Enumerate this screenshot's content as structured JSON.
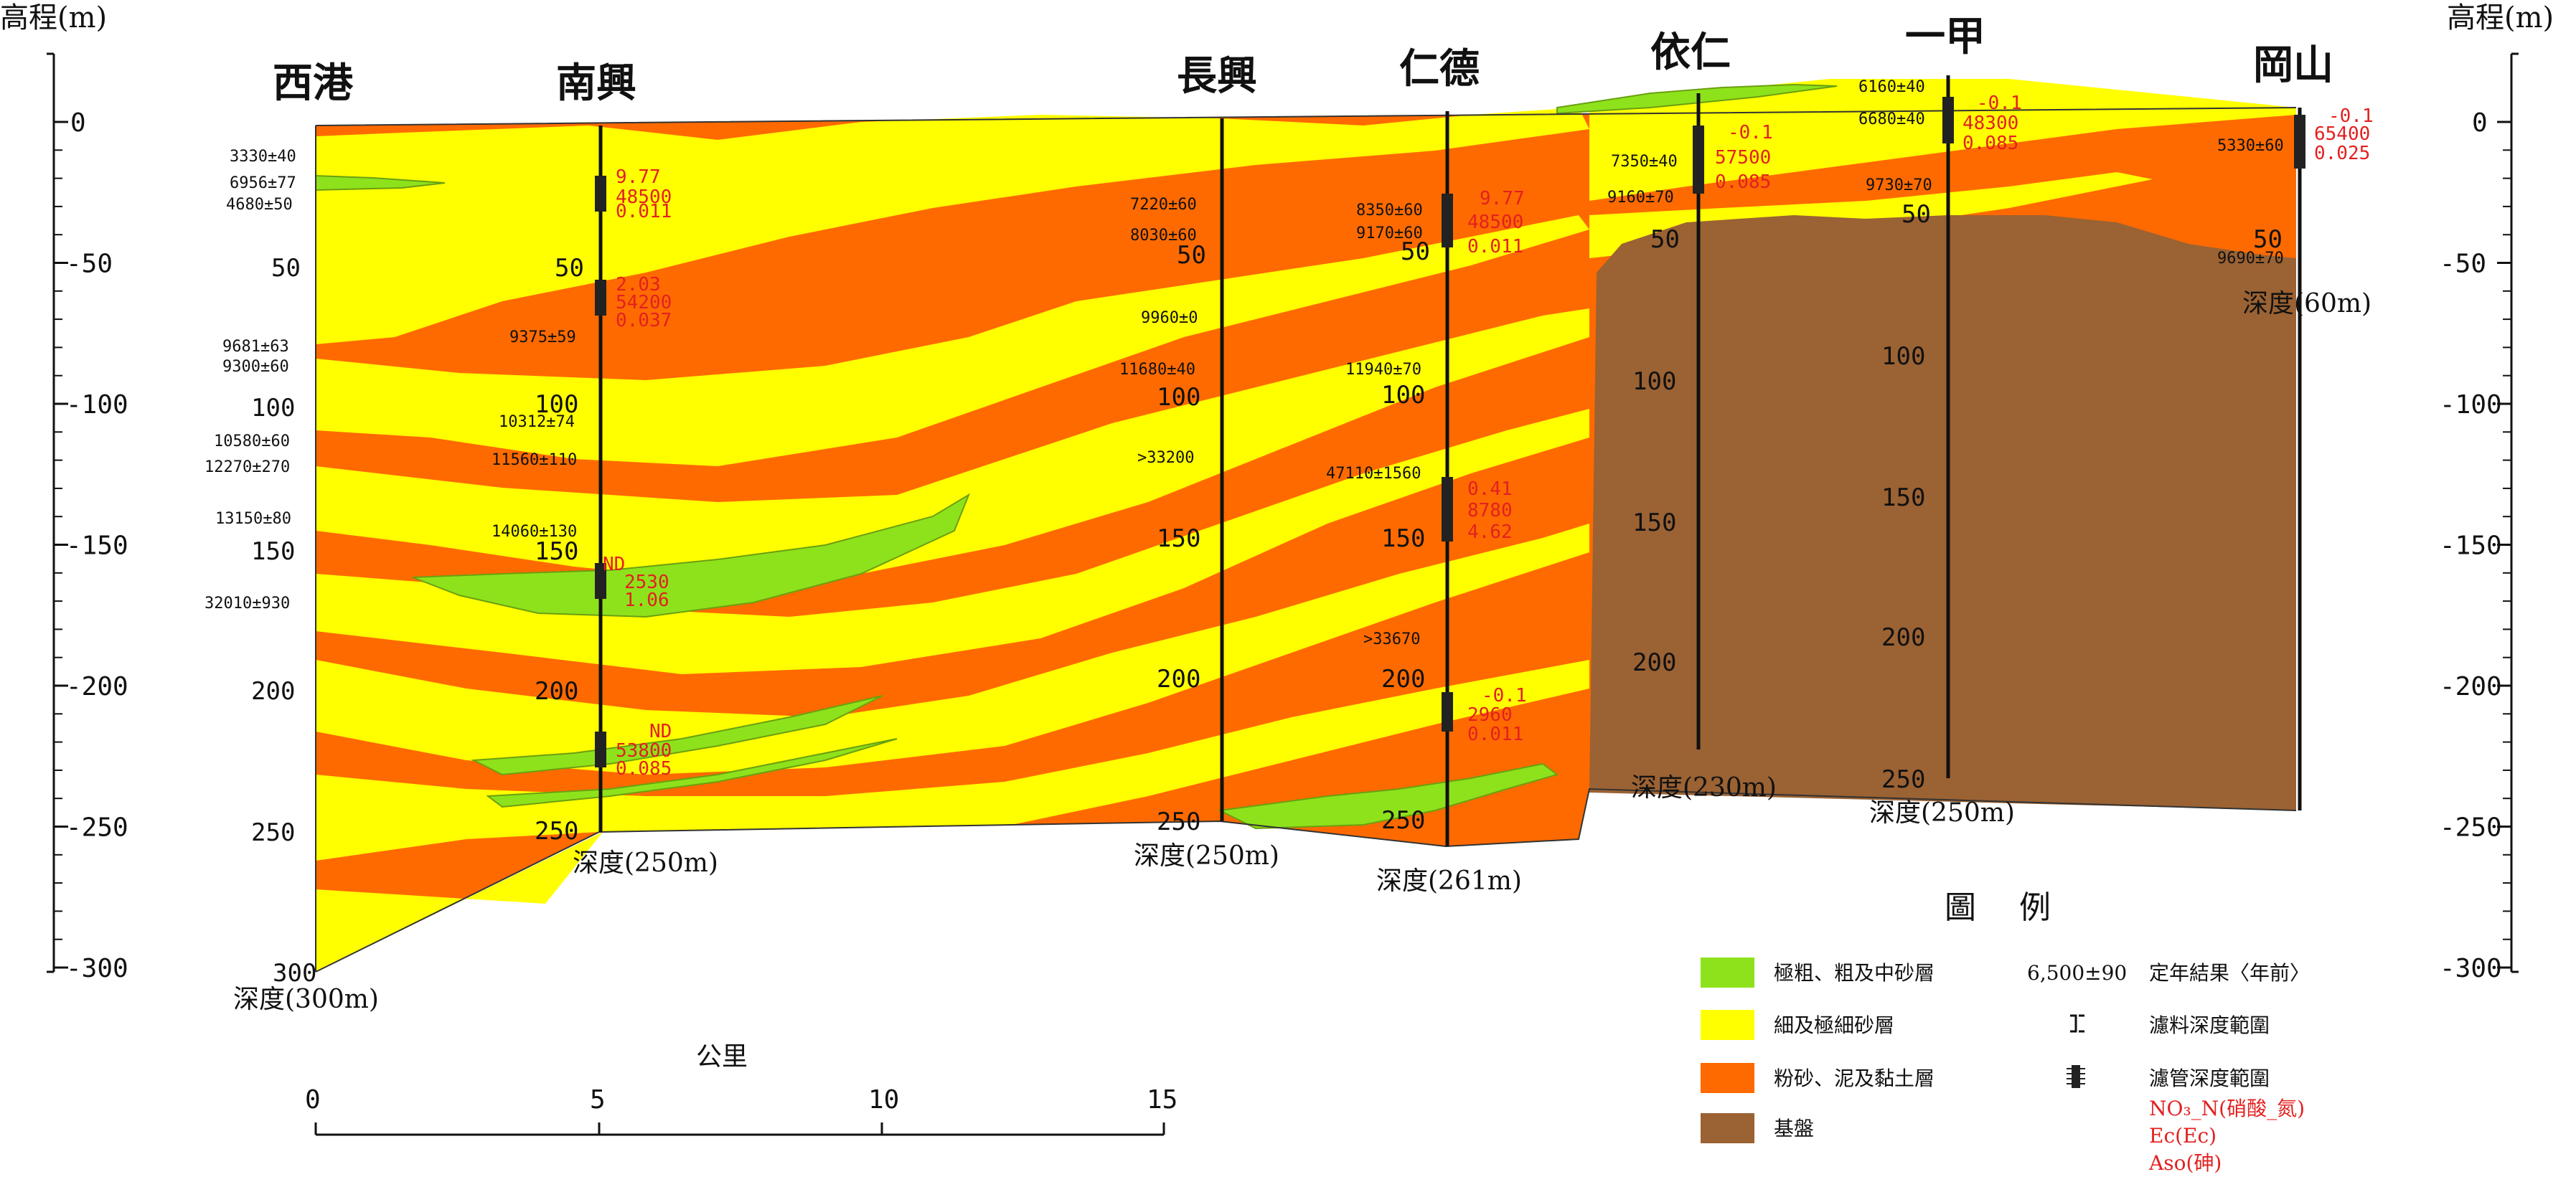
{
  "axis": {
    "title_left": "高程(m)",
    "title_right": "高程(m)",
    "ticks": [
      {
        "value": 0,
        "label": "0"
      },
      {
        "value": -50,
        "label": "-50"
      },
      {
        "value": -100,
        "label": "-100"
      },
      {
        "value": -150,
        "label": "-150"
      },
      {
        "value": -200,
        "label": "-200"
      },
      {
        "value": -250,
        "label": "-250"
      },
      {
        "value": -300,
        "label": "-300"
      }
    ]
  },
  "wells": [
    {
      "id": "xigang",
      "name": "西港",
      "depth_label": "深度(300m)",
      "ticks": [
        "50",
        "100",
        "150",
        "200",
        "250",
        "300"
      ]
    },
    {
      "id": "nanxing",
      "name": "南興",
      "depth_label": "深度(250m)",
      "ticks": [
        "50",
        "100",
        "150",
        "200",
        "250"
      ]
    },
    {
      "id": "changxing",
      "name": "長興",
      "depth_label": "深度(250m)",
      "ticks": [
        "50",
        "100",
        "150",
        "200",
        "250"
      ]
    },
    {
      "id": "rende",
      "name": "仁德",
      "depth_label": "深度(261m)",
      "ticks": [
        "50",
        "100",
        "150",
        "200",
        "250"
      ]
    },
    {
      "id": "yiren",
      "name": "依仁",
      "depth_label": "深度(230m)",
      "ticks": [
        "50",
        "100",
        "150",
        "200"
      ]
    },
    {
      "id": "yijia",
      "name": "一甲",
      "depth_label": "深度(250m)",
      "ticks": [
        "50",
        "100",
        "150",
        "200",
        "250"
      ]
    },
    {
      "id": "gangshan",
      "name": "岡山",
      "depth_label": "深度(60m)",
      "ticks": [
        "50"
      ]
    }
  ],
  "ages": {
    "xigang": [
      "3330±40",
      "6956±77",
      "4680±50",
      "9681±63",
      "9300±60",
      "10580±60",
      "12270±270",
      "13150±80",
      "32010±930"
    ],
    "nanxing": [
      "9375±59",
      "10312±74",
      "11560±110",
      "14060±130"
    ],
    "changxing": [
      "7220±60",
      "8030±60",
      "9960±0",
      "11680±40",
      ">33200"
    ],
    "rende": [
      "8350±60",
      "9170±60",
      "11940±70",
      "47110±1560",
      ">33670"
    ],
    "yiren": [
      "7350±40",
      "9160±70"
    ],
    "yijia": [
      "6160±40",
      "6680±40",
      "9730±70"
    ],
    "gangshan": [
      "5330±60",
      "9690±70"
    ]
  },
  "chem": {
    "nanxing_1": [
      "9.77",
      "48500",
      "0.011"
    ],
    "nanxing_2": [
      "2.03",
      "54200",
      "0.037"
    ],
    "nanxing_3": [
      "ND",
      "2530",
      "1.06"
    ],
    "nanxing_4": [
      "ND",
      "53800",
      "0.085"
    ],
    "rende_1": [
      "9.77",
      "48500",
      "0.011"
    ],
    "rende_2": [
      "0.41",
      "8780",
      "4.62"
    ],
    "rende_3": [
      "-0.1",
      "2960",
      "0.011"
    ],
    "yiren_1": [
      "-0.1",
      "57500",
      "0.085"
    ],
    "yijia_1": [
      "-0.1",
      "48300",
      "0.085"
    ],
    "gangshan_1": [
      "-0.1",
      "65400",
      "0.025"
    ]
  },
  "legend": {
    "title": "圖例",
    "items": [
      {
        "label": "極粗、粗及中砂層",
        "color": "#8ee21b"
      },
      {
        "label": "細及極細砂層",
        "color": "#ffff00"
      },
      {
        "label": "粉砂、泥及黏土層",
        "color": "#ff6a00"
      },
      {
        "label": "基盤",
        "color": "#9b6233"
      }
    ],
    "age_sample": "6,500±90",
    "age_desc": "定年結果〈年前〉",
    "filter_material": "濾料深度範圍",
    "screen": "濾管深度範圍",
    "chem_labels": [
      "NO₃_N(硝酸_氮)",
      "Ec(Ec)",
      "Aso(砷)"
    ]
  },
  "scale": {
    "title": "公里",
    "ticks": [
      "0",
      "5",
      "10",
      "15"
    ]
  },
  "colors": {
    "coarse_sand": "#8ee21b",
    "fine_sand": "#ffff00",
    "clay": "#ff6a00",
    "basement": "#9b6233",
    "chem_text": "#e32020"
  }
}
